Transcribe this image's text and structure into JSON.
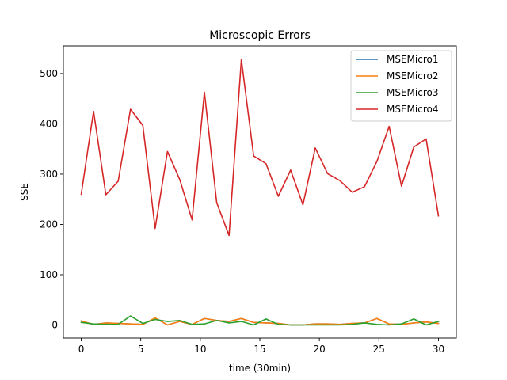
{
  "chart_data": {
    "type": "line",
    "title": "Microscopic Errors",
    "xlabel": "time (30min)",
    "ylabel": "SSE",
    "xlim": [
      -1.5,
      31.5
    ],
    "ylim": [
      -26,
      555
    ],
    "x_ticks": [
      0,
      5,
      10,
      15,
      20,
      25,
      30
    ],
    "y_ticks": [
      0,
      100,
      200,
      300,
      400,
      500
    ],
    "grid": false,
    "legend_position": "top-right",
    "x": [
      0,
      1.034,
      2.069,
      3.103,
      4.138,
      5.172,
      6.207,
      7.241,
      8.276,
      9.31,
      10.345,
      11.379,
      12.414,
      13.448,
      14.483,
      15.517,
      16.552,
      17.586,
      18.621,
      19.655,
      20.69,
      21.724,
      22.759,
      23.793,
      24.828,
      25.862,
      26.897,
      27.931,
      28.966,
      30
    ],
    "series": [
      {
        "name": "MSEMicro1",
        "color": "#1f77b4",
        "values": [
          8,
          1,
          4,
          3,
          2,
          1,
          14,
          0,
          7,
          1,
          13,
          9,
          7,
          13,
          5,
          4,
          3,
          0,
          0,
          2,
          2,
          1,
          3,
          4,
          13,
          2,
          1,
          4,
          6,
          3
        ]
      },
      {
        "name": "MSEMicro2",
        "color": "#ff7f0e",
        "values": [
          8,
          1,
          4,
          3,
          2,
          1,
          14,
          0,
          7,
          1,
          13,
          9,
          7,
          13,
          5,
          4,
          3,
          0,
          0,
          2,
          2,
          1,
          3,
          4,
          13,
          2,
          1,
          4,
          6,
          3
        ]
      },
      {
        "name": "MSEMicro3",
        "color": "#2ca02c",
        "values": [
          5,
          2,
          1,
          1,
          18,
          3,
          11,
          7,
          9,
          1,
          2,
          9,
          4,
          7,
          0,
          12,
          1,
          0,
          0,
          0,
          0,
          0,
          1,
          4,
          1,
          0,
          2,
          12,
          0,
          7
        ]
      },
      {
        "name": "MSEMicro4",
        "color": "#d62728",
        "values": [
          260,
          425,
          259,
          286,
          429,
          397,
          192,
          345,
          289,
          209,
          463,
          243,
          178,
          528,
          336,
          321,
          256,
          308,
          239,
          352,
          301,
          287,
          264,
          275,
          325,
          395,
          276,
          354,
          370,
          217
        ]
      }
    ]
  }
}
